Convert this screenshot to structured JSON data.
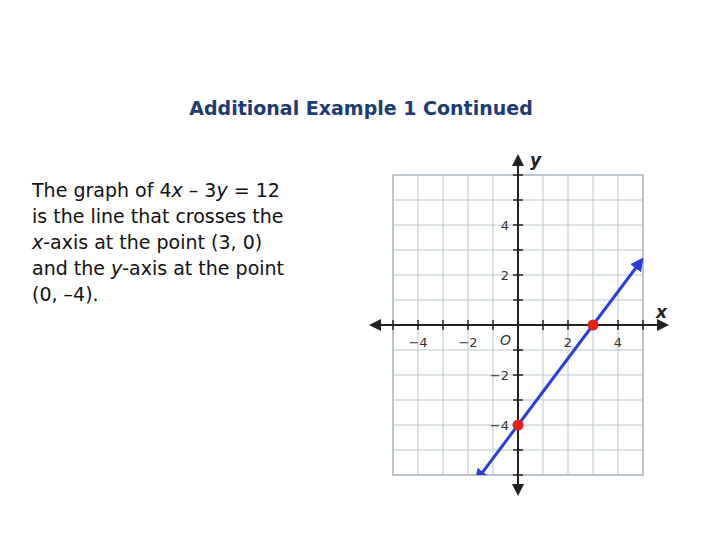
{
  "header": {
    "title": "Additional Example 1 Continued"
  },
  "body": {
    "lines": [
      [
        {
          "text": "The graph of 4"
        },
        {
          "text": "x",
          "style": "italic"
        },
        {
          "text": " – 3"
        },
        {
          "text": "y",
          "style": "italic"
        },
        {
          "text": " = 12"
        }
      ],
      [
        {
          "text": "is the line that crosses the"
        }
      ],
      [
        {
          "text": "x",
          "style": "italic"
        },
        {
          "text": "-axis at the point (3, 0)"
        }
      ],
      [
        {
          "text": "and the "
        },
        {
          "text": "y",
          "style": "italic"
        },
        {
          "text": "-axis at the point"
        }
      ],
      [
        {
          "text": "(0, –4)."
        }
      ]
    ]
  },
  "chart_data": {
    "type": "line",
    "x_label": "x",
    "y_label": "y",
    "annotations": [
      "O"
    ],
    "xlim": [
      -5,
      5
    ],
    "ylim": [
      -6,
      6
    ],
    "xticks": [
      {
        "value": -5,
        "label": null
      },
      {
        "value": -4,
        "label": "−4"
      },
      {
        "value": -3,
        "label": null
      },
      {
        "value": -2,
        "label": "−2"
      },
      {
        "value": -1,
        "label": null
      },
      {
        "value": 0,
        "label": null
      },
      {
        "value": 1,
        "label": null
      },
      2,
      {
        "value": 3,
        "label": null
      },
      4,
      {
        "value": 5,
        "label": null
      }
    ],
    "yticks": [
      {
        "value": -6,
        "label": null
      },
      {
        "value": -5,
        "label": null
      },
      {
        "value": -4,
        "label": "−4"
      },
      {
        "value": -3,
        "label": null
      },
      {
        "value": -2,
        "label": "−2"
      },
      {
        "value": -1,
        "label": null
      },
      {
        "value": 0,
        "label": null
      },
      {
        "value": 1,
        "label": null
      },
      2,
      {
        "value": 3,
        "label": null
      },
      4,
      {
        "value": 5,
        "label": null
      },
      {
        "value": 6,
        "label": null
      }
    ],
    "grid": true,
    "series": [
      {
        "type": "line",
        "color": "#2b3fd6",
        "marker": "arrow",
        "line_style": "solid",
        "x": [
          -1.5,
          0,
          3,
          4.8
        ],
        "values": [
          -6,
          -4,
          0,
          2.4
        ]
      },
      {
        "type": "scatter",
        "color": "#e3211c",
        "marker": "circle",
        "x": [
          0,
          3
        ],
        "values": [
          -4,
          0
        ]
      }
    ]
  }
}
